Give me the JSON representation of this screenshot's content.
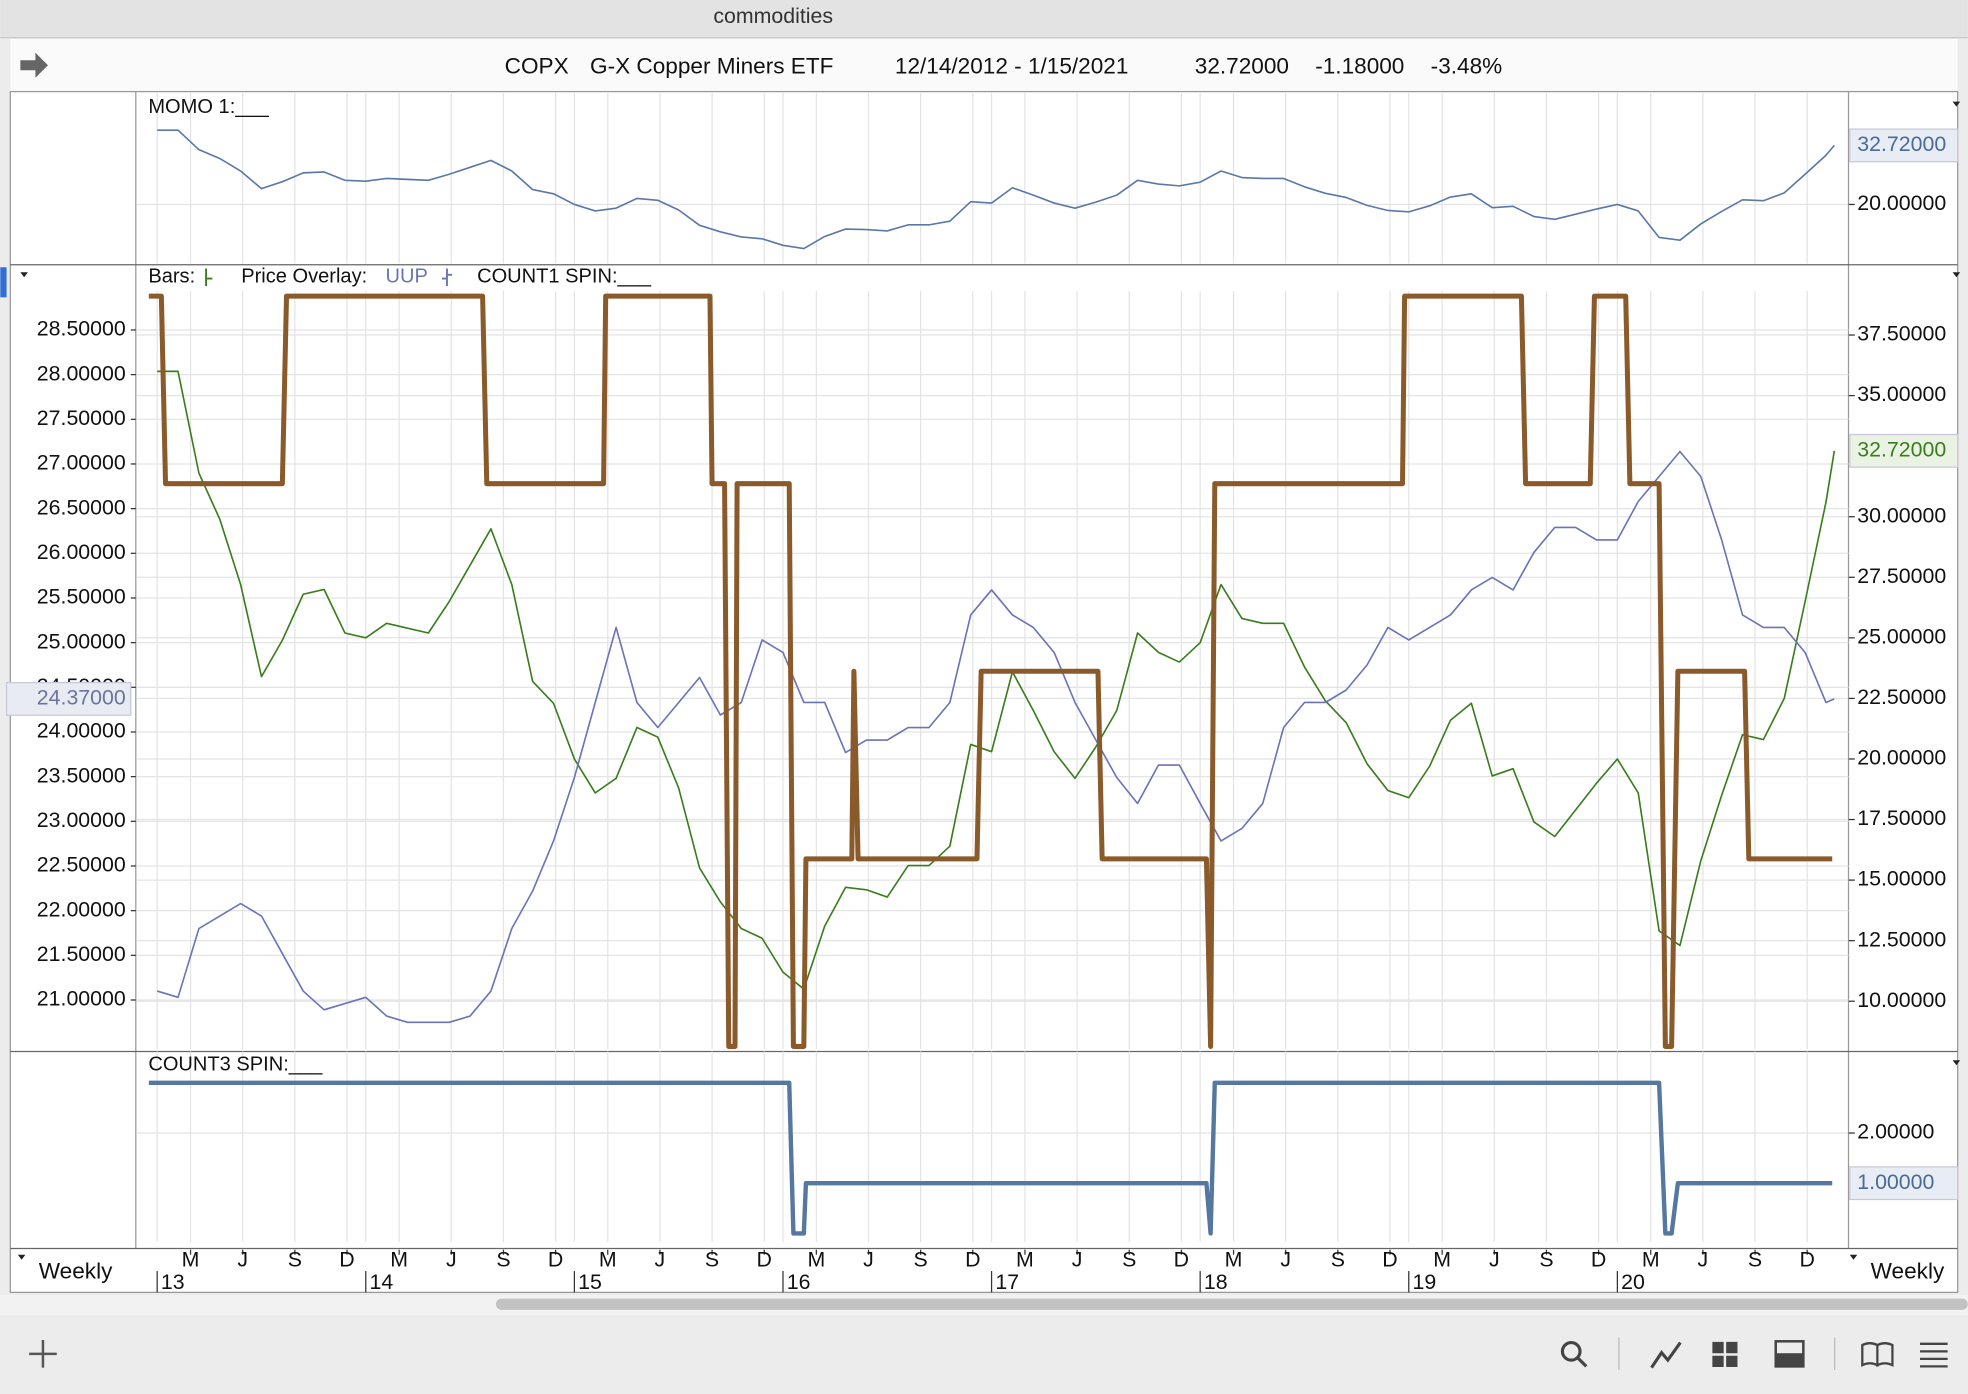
{
  "window": {
    "title": "commodities"
  },
  "header": {
    "symbol": "COPX",
    "name": "G-X Copper Miners ETF",
    "range": "12/14/2012 - 1/15/2021",
    "last": "32.72000",
    "change": "-1.18000",
    "change_pct": "-3.48%"
  },
  "footer": {
    "period_left": "Weekly",
    "period_right": "Weekly"
  },
  "chart_data": [
    {
      "type": "line",
      "title": "MOMO 1:___",
      "x": [
        2013,
        2013.1,
        2013.2,
        2013.3,
        2013.4,
        2013.5,
        2013.6,
        2013.7,
        2013.8,
        2013.9,
        2014,
        2014.1,
        2014.2,
        2014.3,
        2014.4,
        2014.5,
        2014.6,
        2014.7,
        2014.8,
        2014.9,
        2015,
        2015.1,
        2015.2,
        2015.3,
        2015.4,
        2015.5,
        2015.6,
        2015.7,
        2015.8,
        2015.9,
        2016,
        2016.1,
        2016.2,
        2016.3,
        2016.4,
        2016.5,
        2016.6,
        2016.7,
        2016.8,
        2016.9,
        2017,
        2017.1,
        2017.2,
        2017.3,
        2017.4,
        2017.5,
        2017.6,
        2017.7,
        2017.8,
        2017.9,
        2018,
        2018.1,
        2018.2,
        2018.3,
        2018.4,
        2018.5,
        2018.6,
        2018.7,
        2018.8,
        2018.9,
        2019,
        2019.1,
        2019.2,
        2019.3,
        2019.4,
        2019.5,
        2019.6,
        2019.7,
        2019.8,
        2019.9,
        2020,
        2020.1,
        2020.2,
        2020.3,
        2020.4,
        2020.5,
        2020.6,
        2020.7,
        2020.8,
        2020.9,
        2021,
        2021.04
      ],
      "series": [
        {
          "color": "#5a78a8",
          "values": [
            36.0,
            36.0,
            31.8,
            29.9,
            27.2,
            23.4,
            24.9,
            26.8,
            27.0,
            25.2,
            25.0,
            25.6,
            25.4,
            25.2,
            26.5,
            28.0,
            29.5,
            27.2,
            23.2,
            22.3,
            20.0,
            18.6,
            19.2,
            21.3,
            20.9,
            18.8,
            15.5,
            14.1,
            13.0,
            12.6,
            11.2,
            10.5,
            13.1,
            14.7,
            14.6,
            14.3,
            15.6,
            15.6,
            16.4,
            20.6,
            20.3,
            23.6,
            22.0,
            20.3,
            19.2,
            20.5,
            22.0,
            25.2,
            24.4,
            24.0,
            24.8,
            27.2,
            25.8,
            25.6,
            25.6,
            23.8,
            22.4,
            21.5,
            19.8,
            18.7,
            18.4,
            19.7,
            21.6,
            22.3,
            19.3,
            19.6,
            17.4,
            16.8,
            17.9,
            19.0,
            20.0,
            18.6,
            12.9,
            12.3,
            15.8,
            18.5,
            21.0,
            20.8,
            22.5,
            26.5,
            30.6,
            32.72
          ],
          "marker": {
            "value": 32.72,
            "label": "32.72000"
          }
        }
      ],
      "ylim": [
        7.28,
        43.5
      ],
      "yticks": [
        {
          "value": 20,
          "label": "20.00000"
        }
      ],
      "grid": true
    },
    {
      "type": "line",
      "labels": [
        "Bars:",
        "Price Overlay:"
      ],
      "x": [
        2013,
        2013.1,
        2013.2,
        2013.3,
        2013.4,
        2013.5,
        2013.6,
        2013.7,
        2013.8,
        2013.9,
        2014,
        2014.1,
        2014.2,
        2014.3,
        2014.4,
        2014.5,
        2014.6,
        2014.7,
        2014.8,
        2014.9,
        2015,
        2015.1,
        2015.2,
        2015.3,
        2015.4,
        2015.5,
        2015.6,
        2015.7,
        2015.8,
        2015.9,
        2016,
        2016.1,
        2016.2,
        2016.3,
        2016.4,
        2016.5,
        2016.6,
        2016.7,
        2016.8,
        2016.9,
        2017,
        2017.1,
        2017.2,
        2017.3,
        2017.4,
        2017.5,
        2017.6,
        2017.7,
        2017.8,
        2017.9,
        2018,
        2018.1,
        2018.2,
        2018.3,
        2018.4,
        2018.5,
        2018.6,
        2018.7,
        2018.8,
        2018.9,
        2019,
        2019.1,
        2019.2,
        2019.3,
        2019.4,
        2019.5,
        2019.6,
        2019.7,
        2019.8,
        2019.9,
        2020,
        2020.1,
        2020.2,
        2020.3,
        2020.4,
        2020.5,
        2020.6,
        2020.7,
        2020.8,
        2020.9,
        2021,
        2021.04
      ],
      "series": [
        {
          "color": "#3a7d1e",
          "axis": "y2",
          "values": [
            36.0,
            36.0,
            31.8,
            29.9,
            27.2,
            23.4,
            24.9,
            26.8,
            27.0,
            25.2,
            25.0,
            25.6,
            25.4,
            25.2,
            26.5,
            28.0,
            29.5,
            27.2,
            23.2,
            22.3,
            20.0,
            18.6,
            19.2,
            21.3,
            20.9,
            18.8,
            15.5,
            14.1,
            13.0,
            12.6,
            11.2,
            10.5,
            13.1,
            14.7,
            14.6,
            14.3,
            15.6,
            15.6,
            16.4,
            20.6,
            20.3,
            23.6,
            22.0,
            20.3,
            19.2,
            20.5,
            22.0,
            25.2,
            24.4,
            24.0,
            24.8,
            27.2,
            25.8,
            25.6,
            25.6,
            23.8,
            22.4,
            21.5,
            19.8,
            18.7,
            18.4,
            19.7,
            21.6,
            22.3,
            19.3,
            19.6,
            17.4,
            16.8,
            17.9,
            19.0,
            20.0,
            18.6,
            12.9,
            12.3,
            15.8,
            18.5,
            21.0,
            20.8,
            22.5,
            26.5,
            30.6,
            32.72
          ],
          "marker": {
            "value": 32.72,
            "label": "32.72000"
          }
        },
        {
          "name": "UUP",
          "color": "#6b74b8",
          "axis": "y",
          "values": [
            21.1,
            21.03,
            21.8,
            21.94,
            22.08,
            21.94,
            21.52,
            21.1,
            20.89,
            20.96,
            21.03,
            20.82,
            20.75,
            20.75,
            20.75,
            20.82,
            21.1,
            21.8,
            22.22,
            22.78,
            23.49,
            24.33,
            25.17,
            24.33,
            24.05,
            24.33,
            24.61,
            24.19,
            24.33,
            25.03,
            24.89,
            24.33,
            24.33,
            23.77,
            23.91,
            23.91,
            24.05,
            24.05,
            24.33,
            25.31,
            25.59,
            25.31,
            25.17,
            24.89,
            24.33,
            23.91,
            23.49,
            23.2,
            23.63,
            23.63,
            23.2,
            22.78,
            22.92,
            23.2,
            24.05,
            24.33,
            24.33,
            24.47,
            24.75,
            25.17,
            25.03,
            25.17,
            25.31,
            25.59,
            25.73,
            25.59,
            26.01,
            26.29,
            26.29,
            26.15,
            26.15,
            26.58,
            26.86,
            27.14,
            26.86,
            26.15,
            25.31,
            25.17,
            25.17,
            24.89,
            24.33,
            24.37
          ],
          "marker": {
            "value": 24.37,
            "label": "24.37000"
          }
        },
        {
          "name": "COUNT1 SPIN:___",
          "color": "#8b5a2b",
          "axis": "y3",
          "x": [
            2012.96,
            2013.02,
            2013.04,
            2013.6,
            2013.62,
            2014.56,
            2014.58,
            2015.14,
            2015.15,
            2015.65,
            2015.66,
            2015.72,
            2015.74,
            2015.77,
            2015.78,
            2016.03,
            2016.05,
            2016.1,
            2016.11,
            2016.33,
            2016.34,
            2016.36,
            2016.93,
            2016.95,
            2017.51,
            2017.53,
            2018.03,
            2018.05,
            2018.07,
            2018.97,
            2018.98,
            2019.54,
            2019.56,
            2019.87,
            2019.89,
            2020.04,
            2020.06,
            2020.2,
            2020.23,
            2020.26,
            2020.29,
            2020.61,
            2020.63,
            2021.03
          ],
          "values": [
            4,
            4,
            3,
            3,
            4,
            4,
            3,
            3,
            4,
            4,
            3,
            3,
            0,
            0,
            3,
            3,
            0,
            0,
            1,
            1,
            2,
            1,
            1,
            2,
            2,
            1,
            1,
            0,
            3,
            3,
            4,
            4,
            3,
            3,
            4,
            4,
            3,
            3,
            0,
            0,
            2,
            2,
            1,
            1
          ]
        }
      ],
      "ylim": [
        20.452,
        28.907
      ],
      "yticks": [
        {
          "value": 21,
          "label": "21.00000"
        },
        {
          "value": 21.5,
          "label": "21.50000"
        },
        {
          "value": 22,
          "label": "22.00000"
        },
        {
          "value": 22.5,
          "label": "22.50000"
        },
        {
          "value": 23,
          "label": "23.00000"
        },
        {
          "value": 23.5,
          "label": "23.50000"
        },
        {
          "value": 24,
          "label": "24.00000"
        },
        {
          "value": 24.5,
          "label": "24.50000"
        },
        {
          "value": 25,
          "label": "25.00000"
        },
        {
          "value": 25.5,
          "label": "25.50000"
        },
        {
          "value": 26,
          "label": "26.00000"
        },
        {
          "value": 26.5,
          "label": "26.50000"
        },
        {
          "value": 27,
          "label": "27.00000"
        },
        {
          "value": 27.5,
          "label": "27.50000"
        },
        {
          "value": 28,
          "label": "28.00000"
        },
        {
          "value": 28.5,
          "label": "28.50000"
        }
      ],
      "y2lim": [
        8.03,
        39.21
      ],
      "y2ticks": [
        {
          "value": 10,
          "label": "10.00000"
        },
        {
          "value": 12.5,
          "label": "12.50000"
        },
        {
          "value": 15,
          "label": "15.00000"
        },
        {
          "value": 17.5,
          "label": "17.50000"
        },
        {
          "value": 20,
          "label": "20.00000"
        },
        {
          "value": 22.5,
          "label": "22.50000"
        },
        {
          "value": 25,
          "label": "25.00000"
        },
        {
          "value": 27.5,
          "label": "27.50000"
        },
        {
          "value": 30,
          "label": "30.00000"
        },
        {
          "value": 35,
          "label": "35.00000"
        },
        {
          "value": 37.5,
          "label": "37.50000"
        }
      ],
      "y3lim": [
        0,
        4
      ],
      "grid": true
    },
    {
      "type": "line",
      "title": "COUNT3 SPIN:___",
      "series": [
        {
          "color": "#5577a0",
          "x": [
            2012.96,
            2016.03,
            2016.05,
            2016.1,
            2016.11,
            2018.03,
            2018.05,
            2018.07,
            2020.2,
            2020.23,
            2020.26,
            2020.29,
            2021.03
          ],
          "values": [
            3,
            3,
            0,
            0,
            1,
            1,
            0,
            3,
            3,
            0,
            0,
            1,
            1
          ],
          "marker": {
            "value": 1,
            "label": "1.00000"
          }
        }
      ],
      "ylim": [
        -0.175,
        3.575
      ],
      "yticks": [
        {
          "value": 2,
          "label": "2.00000"
        }
      ],
      "xlim": [
        2012.93,
        2021.09
      ],
      "xticks": [
        {
          "value": 2013,
          "label": "13"
        },
        {
          "value": 2013.16,
          "label": "M"
        },
        {
          "value": 2013.41,
          "label": "J"
        },
        {
          "value": 2013.66,
          "label": "S"
        },
        {
          "value": 2013.91,
          "label": "D"
        },
        {
          "value": 2014,
          "label": "14"
        },
        {
          "value": 2014.16,
          "label": "M"
        },
        {
          "value": 2014.41,
          "label": "J"
        },
        {
          "value": 2014.66,
          "label": "S"
        },
        {
          "value": 2014.91,
          "label": "D"
        },
        {
          "value": 2015,
          "label": "15"
        },
        {
          "value": 2015.16,
          "label": "M"
        },
        {
          "value": 2015.41,
          "label": "J"
        },
        {
          "value": 2015.66,
          "label": "S"
        },
        {
          "value": 2015.91,
          "label": "D"
        },
        {
          "value": 2016,
          "label": "16"
        },
        {
          "value": 2016.16,
          "label": "M"
        },
        {
          "value": 2016.41,
          "label": "J"
        },
        {
          "value": 2016.66,
          "label": "S"
        },
        {
          "value": 2016.91,
          "label": "D"
        },
        {
          "value": 2017,
          "label": "17"
        },
        {
          "value": 2017.16,
          "label": "M"
        },
        {
          "value": 2017.41,
          "label": "J"
        },
        {
          "value": 2017.66,
          "label": "S"
        },
        {
          "value": 2017.91,
          "label": "D"
        },
        {
          "value": 2018,
          "label": "18"
        },
        {
          "value": 2018.16,
          "label": "M"
        },
        {
          "value": 2018.41,
          "label": "J"
        },
        {
          "value": 2018.66,
          "label": "S"
        },
        {
          "value": 2018.91,
          "label": "D"
        },
        {
          "value": 2019,
          "label": "19"
        },
        {
          "value": 2019.16,
          "label": "M"
        },
        {
          "value": 2019.41,
          "label": "J"
        },
        {
          "value": 2019.66,
          "label": "S"
        },
        {
          "value": 2019.91,
          "label": "D"
        },
        {
          "value": 2020,
          "label": "20"
        },
        {
          "value": 2020.16,
          "label": "M"
        },
        {
          "value": 2020.41,
          "label": "J"
        },
        {
          "value": 2020.66,
          "label": "S"
        },
        {
          "value": 2020.91,
          "label": "D"
        }
      ],
      "grid": true
    }
  ]
}
